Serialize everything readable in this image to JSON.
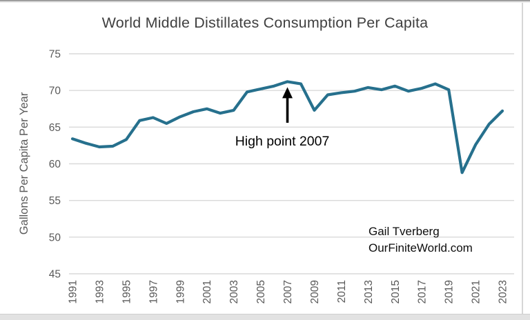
{
  "page": {
    "attribution_line1": "Gail Tverberg",
    "attribution_line2": "OurFiniteWorld.com"
  },
  "colors": {
    "line": "#26708D",
    "gridline": "#D9D9D9",
    "tick_label": "#595959",
    "axis_title": "#595959",
    "chart_title": "#404040",
    "annotation": "#000000"
  },
  "chart_data": {
    "type": "line",
    "title": "World Middle Distillates Consumption Per Capita",
    "xlabel": "",
    "ylabel": "Gallons Per Capita Per Year",
    "ylim": [
      45,
      75
    ],
    "yticks": [
      45,
      50,
      55,
      60,
      65,
      70,
      75
    ],
    "xticks": [
      1991,
      1993,
      1995,
      1997,
      1999,
      2001,
      2003,
      2005,
      2007,
      2009,
      2011,
      2013,
      2015,
      2017,
      2019,
      2021,
      2023
    ],
    "grid": true,
    "legend": false,
    "x": [
      1991,
      1992,
      1993,
      1994,
      1995,
      1996,
      1997,
      1998,
      1999,
      2000,
      2001,
      2002,
      2003,
      2004,
      2005,
      2006,
      2007,
      2008,
      2009,
      2010,
      2011,
      2012,
      2013,
      2014,
      2015,
      2016,
      2017,
      2018,
      2019,
      2020,
      2021,
      2022,
      2023
    ],
    "values": [
      63.4,
      62.8,
      62.3,
      62.4,
      63.3,
      65.9,
      66.3,
      65.5,
      66.4,
      67.1,
      67.5,
      66.9,
      67.3,
      69.8,
      70.2,
      70.6,
      71.2,
      70.9,
      67.3,
      69.4,
      69.7,
      69.9,
      70.4,
      70.1,
      70.6,
      69.9,
      70.3,
      70.9,
      70.1,
      58.8,
      62.6,
      65.4,
      67.2
    ],
    "annotation": {
      "text": "High point 2007",
      "target_x": 2007,
      "target_y": 71.2
    }
  }
}
